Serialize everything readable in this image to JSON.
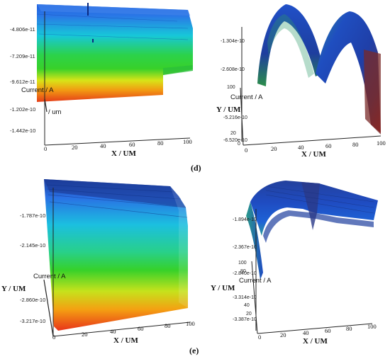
{
  "labels": {
    "d": "(d)",
    "e": "(e)"
  },
  "panels": [
    {
      "id": "d-left",
      "xlabel": "X / UM",
      "zlabel": "Current / A",
      "ylabel": "/ um",
      "xticks": [
        "0",
        "20",
        "40",
        "60",
        "80",
        "100"
      ],
      "zticks": [
        "-4.806e-11",
        "-7.209e-11",
        "-9.612e-11",
        "-1.202e-10",
        "-1.442e-10"
      ]
    },
    {
      "id": "d-right",
      "xlabel": "X / UM",
      "ylabel": "Y / UM",
      "zlabel": "Current / A",
      "xticks": [
        "0",
        "20",
        "40",
        "60",
        "80",
        "100"
      ],
      "yticks": [
        "100",
        "20",
        "0"
      ],
      "zticks": [
        "-1.304e-10",
        "-2.608e-10",
        "-5.216e-10",
        "-6.520e-10"
      ]
    },
    {
      "id": "e-left",
      "xlabel": "X / UM",
      "ylabel": "Y / UM",
      "zlabel": "Current / A",
      "xticks": [
        "0",
        "20",
        "40",
        "60",
        "80",
        "100"
      ],
      "zticks": [
        "-1.787e-10",
        "-2.145e-10",
        "-2.860e-10",
        "-3.217e-10"
      ]
    },
    {
      "id": "e-right",
      "xlabel": "X / UM",
      "ylabel": "Y / UM",
      "zlabel": "Current / A",
      "xticks": [
        "0",
        "20",
        "40",
        "60",
        "80",
        "100"
      ],
      "yticks": [
        "100",
        "80",
        "40",
        "20"
      ],
      "zticks": [
        "-1.894e-10",
        "-2.367e-10",
        "-2.840e-10",
        "-3.314e-10",
        "-3.387e-10"
      ]
    }
  ],
  "colors": {
    "red": "#e8321a",
    "orange": "#f08a14",
    "yellow": "#e9e41a",
    "green": "#2fd02a",
    "cyan": "#16c8d8",
    "blue": "#1f5fe0",
    "navy": "#243c9a"
  }
}
